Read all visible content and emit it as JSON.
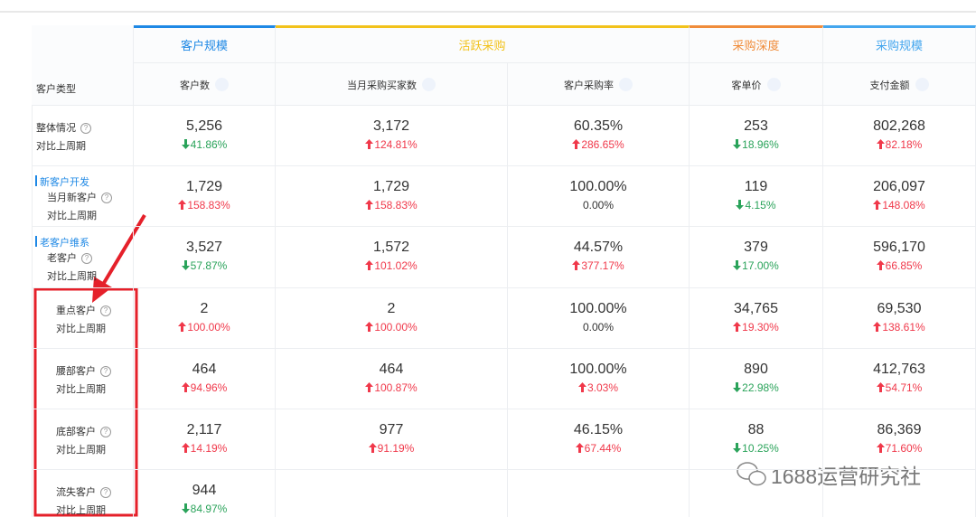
{
  "group_headers": [
    {
      "label": "客户规模",
      "color": "#1e88e5",
      "span": 1
    },
    {
      "label": "活跃采购",
      "color": "#f2c21b",
      "span": 2
    },
    {
      "label": "采购深度",
      "color": "#f08c3a",
      "span": 1
    },
    {
      "label": "采购规模",
      "color": "#44a6ee",
      "span": 1
    }
  ],
  "columns": [
    "客户类型",
    "客户数",
    "当月采购买家数",
    "客户采购率",
    "客单价",
    "支付金额"
  ],
  "rows": [
    {
      "label": "整体情况",
      "compare_label": "对比上周期",
      "cells": [
        {
          "value": "5,256",
          "change": "41.86%",
          "trend": "down"
        },
        {
          "value": "3,172",
          "change": "124.81%",
          "trend": "up"
        },
        {
          "value": "60.35%",
          "change": "286.65%",
          "trend": "up"
        },
        {
          "value": "253",
          "change": "18.96%",
          "trend": "down"
        },
        {
          "value": "802,268",
          "change": "82.18%",
          "trend": "up"
        }
      ]
    },
    {
      "section": "新客户开发",
      "label": "当月新客户",
      "compare_label": "对比上周期",
      "cells": [
        {
          "value": "1,729",
          "change": "158.83%",
          "trend": "up"
        },
        {
          "value": "1,729",
          "change": "158.83%",
          "trend": "up"
        },
        {
          "value": "100.00%",
          "change": "0.00%",
          "trend": "flat"
        },
        {
          "value": "119",
          "change": "4.15%",
          "trend": "down"
        },
        {
          "value": "206,097",
          "change": "148.08%",
          "trend": "up"
        }
      ]
    },
    {
      "section": "老客户维系",
      "label": "老客户",
      "compare_label": "对比上周期",
      "cells": [
        {
          "value": "3,527",
          "change": "57.87%",
          "trend": "down"
        },
        {
          "value": "1,572",
          "change": "101.02%",
          "trend": "up"
        },
        {
          "value": "44.57%",
          "change": "377.17%",
          "trend": "up"
        },
        {
          "value": "379",
          "change": "17.00%",
          "trend": "down"
        },
        {
          "value": "596,170",
          "change": "66.85%",
          "trend": "up"
        }
      ]
    },
    {
      "label": "重点客户",
      "compare_label": "对比上周期",
      "cells": [
        {
          "value": "2",
          "change": "100.00%",
          "trend": "up"
        },
        {
          "value": "2",
          "change": "100.00%",
          "trend": "up"
        },
        {
          "value": "100.00%",
          "change": "0.00%",
          "trend": "flat"
        },
        {
          "value": "34,765",
          "change": "19.30%",
          "trend": "up"
        },
        {
          "value": "69,530",
          "change": "138.61%",
          "trend": "up"
        }
      ]
    },
    {
      "label": "腰部客户",
      "compare_label": "对比上周期",
      "cells": [
        {
          "value": "464",
          "change": "94.96%",
          "trend": "up"
        },
        {
          "value": "464",
          "change": "100.87%",
          "trend": "up"
        },
        {
          "value": "100.00%",
          "change": "3.03%",
          "trend": "up"
        },
        {
          "value": "890",
          "change": "22.98%",
          "trend": "down"
        },
        {
          "value": "412,763",
          "change": "54.71%",
          "trend": "up"
        }
      ]
    },
    {
      "label": "底部客户",
      "compare_label": "对比上周期",
      "cells": [
        {
          "value": "2,117",
          "change": "14.19%",
          "trend": "up"
        },
        {
          "value": "977",
          "change": "91.19%",
          "trend": "up"
        },
        {
          "value": "46.15%",
          "change": "67.44%",
          "trend": "up"
        },
        {
          "value": "88",
          "change": "10.25%",
          "trend": "down"
        },
        {
          "value": "86,369",
          "change": "71.60%",
          "trend": "up"
        }
      ]
    },
    {
      "label": "流失客户",
      "compare_label": "对比上周期",
      "cells": [
        {
          "value": "944",
          "change": "84.97%",
          "trend": "down"
        }
      ]
    }
  ],
  "watermark": "1688运营研究社"
}
